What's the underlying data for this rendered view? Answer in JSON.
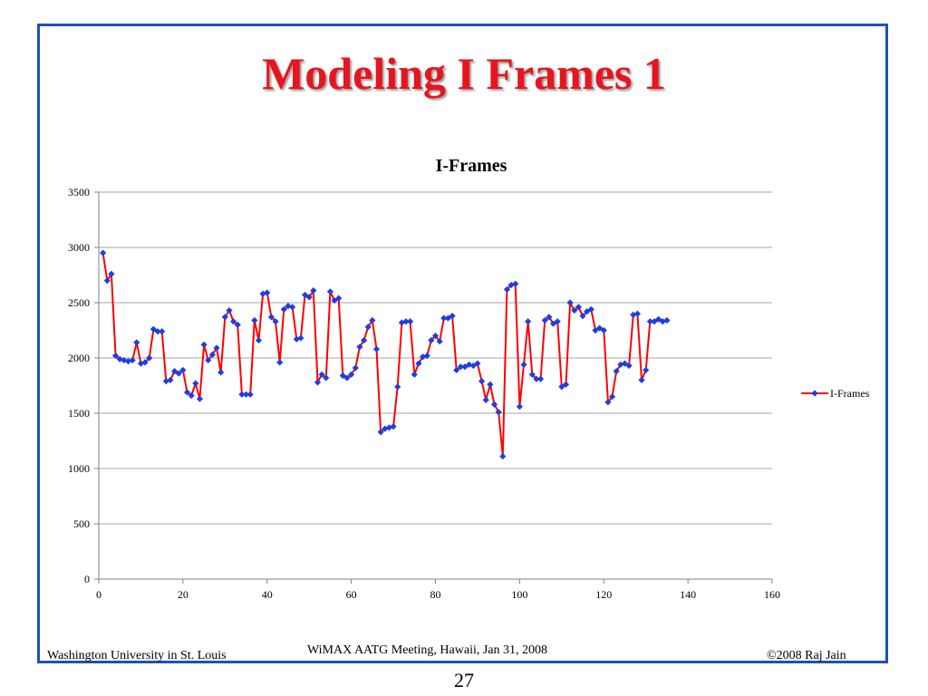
{
  "slide": {
    "title": "Modeling I Frames 1",
    "footer_left": "Washington University in St. Louis",
    "footer_center": "WiMAX AATG Meeting, Hawaii, Jan 31, 2008",
    "footer_right": "©2008 Raj Jain",
    "page_number": "27"
  },
  "colors": {
    "frame_border": "#1f4fbf",
    "title_text": "#e8141e",
    "series_line": "#ff0000",
    "series_marker": "#1f3fdd"
  },
  "chart_data": {
    "type": "line",
    "title": "I-Frames",
    "xlabel": "",
    "ylabel": "",
    "xlim": [
      0,
      160
    ],
    "ylim": [
      0,
      3500
    ],
    "x_ticks": [
      0,
      20,
      40,
      60,
      80,
      100,
      120,
      140,
      160
    ],
    "y_ticks": [
      0,
      500,
      1000,
      1500,
      2000,
      2500,
      3000,
      3500
    ],
    "grid": "horizontal",
    "legend_position": "right",
    "series": [
      {
        "name": "I-Frames",
        "x": [
          1,
          2,
          3,
          4,
          5,
          6,
          7,
          8,
          9,
          10,
          11,
          12,
          13,
          14,
          15,
          16,
          17,
          18,
          19,
          20,
          21,
          22,
          23,
          24,
          25,
          26,
          27,
          28,
          29,
          30,
          31,
          32,
          33,
          34,
          35,
          36,
          37,
          38,
          39,
          40,
          41,
          42,
          43,
          44,
          45,
          46,
          47,
          48,
          49,
          50,
          51,
          52,
          53,
          54,
          55,
          56,
          57,
          58,
          59,
          60,
          61,
          62,
          63,
          64,
          65,
          66,
          67,
          68,
          69,
          70,
          71,
          72,
          73,
          74,
          75,
          76,
          77,
          78,
          79,
          80,
          81,
          82,
          83,
          84,
          85,
          86,
          87,
          88,
          89,
          90,
          91,
          92,
          93,
          94,
          95,
          96,
          97,
          98,
          99,
          100,
          101,
          102,
          103,
          104,
          105,
          106,
          107,
          108,
          109,
          110,
          111,
          112,
          113,
          114,
          115,
          116,
          117,
          118,
          119,
          120,
          121,
          122,
          123,
          124,
          125,
          126,
          127,
          128,
          129,
          130,
          131,
          132,
          133,
          134,
          135
        ],
        "values": [
          2950,
          2700,
          2760,
          2020,
          1990,
          1980,
          1970,
          1980,
          2140,
          1950,
          1960,
          2000,
          2260,
          2240,
          2240,
          1790,
          1800,
          1880,
          1860,
          1890,
          1690,
          1660,
          1770,
          1630,
          2120,
          1980,
          2030,
          2090,
          1870,
          2370,
          2430,
          2330,
          2300,
          1670,
          1670,
          1670,
          2340,
          2160,
          2580,
          2590,
          2370,
          2330,
          1960,
          2440,
          2470,
          2460,
          2170,
          2180,
          2570,
          2550,
          2610,
          1780,
          1850,
          1820,
          2600,
          2520,
          2540,
          1840,
          1820,
          1850,
          1910,
          2100,
          2160,
          2280,
          2340,
          2080,
          1330,
          1360,
          1370,
          1380,
          1740,
          2320,
          2330,
          2330,
          1850,
          1950,
          2010,
          2020,
          2160,
          2200,
          2150,
          2360,
          2360,
          2380,
          1890,
          1920,
          1920,
          1940,
          1930,
          1950,
          1790,
          1620,
          1760,
          1580,
          1510,
          1110,
          2620,
          2660,
          2670,
          1560,
          1940,
          2330,
          1850,
          1810,
          1810,
          2340,
          2370,
          2310,
          2330,
          1740,
          1760,
          2500,
          2430,
          2460,
          2380,
          2420,
          2440,
          2250,
          2270,
          2250,
          1600,
          1650,
          1880,
          1940,
          1950,
          1930,
          2390,
          2400,
          1800,
          1890,
          2330,
          2330,
          2350,
          2330,
          2340
        ]
      }
    ]
  }
}
